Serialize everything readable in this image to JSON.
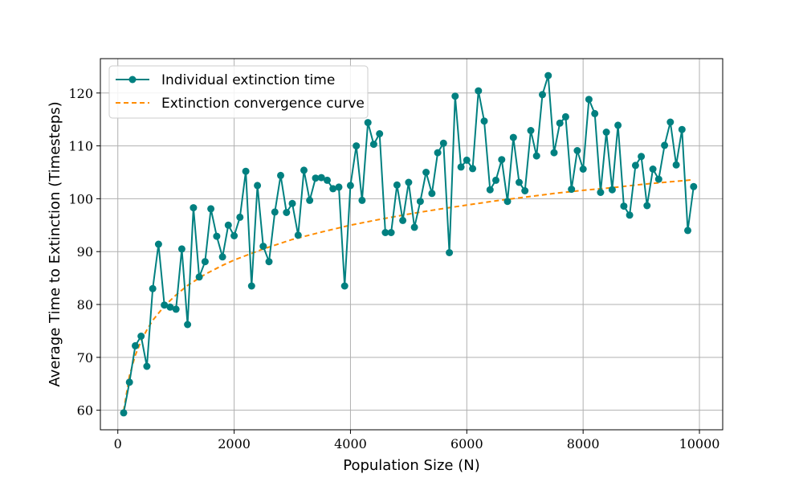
{
  "chart_data": {
    "type": "line",
    "xlabel": "Population Size (N)",
    "ylabel": "Average Time to Extinction (Timesteps)",
    "xlim": [
      -300,
      10400
    ],
    "ylim": [
      56.3,
      126.5
    ],
    "xticks": [
      0,
      2000,
      4000,
      6000,
      8000,
      10000
    ],
    "yticks": [
      60,
      70,
      80,
      90,
      100,
      110,
      120
    ],
    "grid": true,
    "legend_position": "top-left",
    "colors": {
      "individual": "#008080",
      "convergence": "#ff8c00"
    },
    "series": [
      {
        "name": "Individual extinction time",
        "style": "line-markers",
        "x": [
          100,
          200,
          300,
          400,
          500,
          600,
          700,
          800,
          900,
          1000,
          1100,
          1200,
          1300,
          1400,
          1500,
          1600,
          1700,
          1800,
          1900,
          2000,
          2100,
          2200,
          2300,
          2400,
          2500,
          2600,
          2700,
          2800,
          2900,
          3000,
          3100,
          3200,
          3300,
          3400,
          3500,
          3600,
          3700,
          3800,
          3900,
          4000,
          4100,
          4200,
          4300,
          4400,
          4500,
          4600,
          4700,
          4800,
          4900,
          5000,
          5100,
          5200,
          5300,
          5400,
          5500,
          5600,
          5700,
          5800,
          5900,
          6000,
          6100,
          6200,
          6300,
          6400,
          6500,
          6600,
          6700,
          6800,
          6900,
          7000,
          7100,
          7200,
          7300,
          7400,
          7500,
          7600,
          7700,
          7800,
          7900,
          8000,
          8100,
          8200,
          8300,
          8400,
          8500,
          8600,
          8700,
          8800,
          8900,
          9000,
          9100,
          9200,
          9300,
          9400,
          9500,
          9600,
          9700,
          9800,
          9900
        ],
        "y": [
          59.5,
          65.3,
          72.2,
          74.0,
          68.3,
          83.0,
          91.4,
          79.9,
          79.5,
          79.1,
          90.5,
          76.2,
          98.3,
          85.2,
          88.1,
          98.1,
          92.9,
          89.0,
          95.0,
          93.0,
          96.5,
          105.2,
          83.5,
          102.5,
          91.0,
          88.1,
          97.5,
          104.4,
          97.4,
          99.1,
          93.1,
          105.4,
          99.7,
          103.9,
          104.0,
          103.5,
          101.9,
          102.2,
          83.5,
          102.5,
          110.0,
          99.7,
          114.4,
          110.3,
          112.3,
          93.6,
          93.6,
          102.6,
          95.9,
          103.1,
          94.6,
          99.5,
          105.0,
          101.0,
          108.7,
          110.5,
          89.8,
          119.4,
          106.0,
          107.3,
          105.7,
          120.4,
          114.7,
          101.7,
          103.5,
          107.4,
          99.5,
          111.6,
          103.1,
          101.5,
          112.9,
          108.1,
          119.7,
          123.3,
          108.7,
          114.3,
          115.5,
          101.8,
          109.1,
          105.6,
          118.8,
          116.1,
          101.2,
          112.6,
          101.7,
          113.9,
          98.6,
          96.9,
          106.3,
          108.0,
          98.7,
          105.6,
          103.7,
          110.1,
          114.5,
          106.4,
          113.1,
          94.0,
          102.3
        ]
      },
      {
        "name": "Extinction convergence curve",
        "style": "dashed",
        "model": {
          "form": "a + b*ln(N)",
          "a": 23.2,
          "b": 9.5
        },
        "x": [
          100,
          200,
          300,
          400,
          500,
          600,
          800,
          1000,
          1200,
          1500,
          1800,
          2000,
          2500,
          3000,
          3500,
          4000,
          4500,
          5000,
          5500,
          6000,
          6500,
          7000,
          7500,
          8000,
          8500,
          9000,
          9500,
          9900
        ],
        "y": [
          59.9,
          66.5,
          70.4,
          73.1,
          75.2,
          77.0,
          79.7,
          81.8,
          83.6,
          85.7,
          87.4,
          88.4,
          90.5,
          92.3,
          93.7,
          95.0,
          96.1,
          97.1,
          98.0,
          98.8,
          99.6,
          100.3,
          101.0,
          101.6,
          102.1,
          102.7,
          103.2,
          103.6
        ]
      }
    ]
  }
}
